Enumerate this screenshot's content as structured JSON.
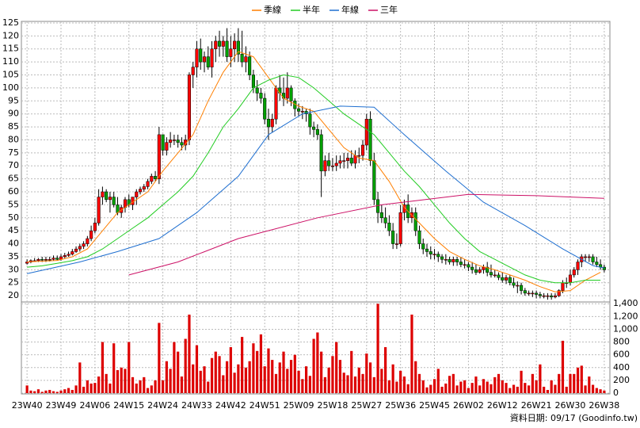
{
  "chart_data": {
    "type": "candlestick",
    "legend_position": "top",
    "grid": true,
    "xlim": [
      -1.5,
      154.5
    ],
    "xticks": [
      {
        "value": 0,
        "label": "23W40"
      },
      {
        "value": 9,
        "label": "23W49"
      },
      {
        "value": 18,
        "label": "24W06"
      },
      {
        "value": 27,
        "label": "24W15"
      },
      {
        "value": 36,
        "label": "24W24"
      },
      {
        "value": 45,
        "label": "24W33"
      },
      {
        "value": 54,
        "label": "24W42"
      },
      {
        "value": 63,
        "label": "24W51"
      },
      {
        "value": 72,
        "label": "25W09"
      },
      {
        "value": 81,
        "label": "25W18"
      },
      {
        "value": 90,
        "label": "25W27"
      },
      {
        "value": 99,
        "label": "25W36"
      },
      {
        "value": 108,
        "label": "25W45"
      },
      {
        "value": 117,
        "label": "26W02"
      },
      {
        "value": 126,
        "label": "26W12"
      },
      {
        "value": 135,
        "label": "26W21"
      },
      {
        "value": 144,
        "label": "26W30"
      },
      {
        "value": 153,
        "label": "26W38"
      }
    ],
    "ylim": [
      17.6,
      125.6
    ],
    "yticks": [
      20,
      25,
      30,
      35,
      40,
      45,
      50,
      55,
      60,
      65,
      70,
      75,
      80,
      85,
      90,
      95,
      100,
      105,
      110,
      115,
      120,
      125
    ],
    "up_color": "#ff0000",
    "down_color": "#00a000",
    "candles": {
      "open": [
        32.5,
        33,
        33.5,
        33.5,
        34,
        33.8,
        34,
        34,
        34.5,
        34,
        35,
        35.5,
        36,
        37,
        38,
        39,
        40,
        42,
        45,
        48,
        58,
        60,
        57,
        58,
        55,
        52,
        54,
        57,
        55,
        58,
        60,
        61,
        62,
        64,
        66,
        65,
        82,
        76,
        79,
        80,
        80,
        79,
        78,
        80,
        105,
        108,
        115,
        110,
        112,
        108,
        115,
        118,
        116,
        118,
        112,
        115,
        118,
        113,
        110,
        112,
        105,
        100,
        98,
        96,
        88,
        85,
        88,
        100,
        98,
        96,
        100,
        95,
        92,
        91,
        91,
        90,
        85,
        84,
        82,
        68,
        72,
        70,
        70,
        71,
        72,
        72,
        73,
        71,
        74,
        74,
        78,
        88,
        72,
        57,
        52,
        50,
        48,
        45,
        40,
        40,
        52,
        55,
        50,
        52,
        45,
        40,
        38,
        37,
        36,
        36,
        35,
        34,
        34,
        33,
        34,
        33,
        32,
        32,
        31,
        30,
        29,
        30,
        31,
        29,
        28,
        28,
        27,
        26,
        27,
        25,
        24,
        24,
        22,
        21,
        21,
        21,
        20.5,
        20,
        20,
        20,
        19.5,
        20,
        22,
        25,
        25,
        28,
        30,
        33,
        35,
        35,
        35,
        33,
        32,
        31
      ],
      "high": [
        34,
        34,
        34.5,
        34.5,
        35,
        35,
        35,
        35.5,
        35.5,
        36,
        36.5,
        37,
        38,
        39,
        40,
        41,
        43,
        47,
        50,
        61,
        62,
        61,
        60,
        60,
        58,
        55,
        58,
        59,
        58,
        61,
        62,
        63,
        65,
        67,
        68,
        85,
        82,
        81,
        83,
        82,
        82,
        81,
        82,
        106,
        110,
        118,
        119,
        114,
        116,
        118,
        120,
        122,
        120,
        123,
        120,
        121,
        123,
        122,
        116,
        114,
        107,
        103,
        100,
        98,
        92,
        90,
        101,
        105,
        104,
        106,
        101,
        96,
        94,
        93,
        92,
        92,
        87,
        86,
        84,
        74,
        75,
        73,
        74,
        74,
        75,
        75,
        76,
        76,
        77,
        80,
        90,
        91,
        75,
        60,
        55,
        54,
        51,
        48,
        44,
        55,
        57,
        59,
        54,
        54,
        47,
        42,
        40,
        39,
        38,
        37,
        36,
        36,
        35,
        35,
        35,
        35,
        34,
        33,
        33,
        32,
        31,
        32,
        33,
        32,
        30,
        29,
        29,
        28,
        28,
        27,
        25.5,
        25,
        23,
        22,
        22,
        22,
        21.5,
        21,
        21,
        21,
        21,
        22.5,
        26,
        27,
        30,
        31,
        34,
        36,
        36,
        36,
        36,
        35,
        34,
        32
      ],
      "low": [
        32,
        32.5,
        33,
        33,
        33,
        33,
        33.2,
        33.5,
        33.5,
        33.5,
        34.5,
        35,
        35.5,
        36.5,
        37,
        38,
        39,
        41,
        44,
        47,
        55,
        56,
        52,
        54,
        51,
        50,
        52,
        54,
        53,
        55,
        59,
        60,
        61,
        63,
        64,
        63,
        74,
        74,
        77,
        78,
        77,
        76,
        76,
        78,
        100,
        104,
        107,
        106,
        107,
        104,
        110,
        112,
        112,
        110,
        108,
        110,
        110,
        108,
        106,
        103,
        98,
        95,
        94,
        86,
        80,
        83,
        86,
        95,
        93,
        94,
        93,
        89,
        89,
        88,
        87,
        82,
        81,
        80,
        58,
        66,
        68,
        68,
        68,
        69,
        69,
        69,
        70,
        69,
        71,
        72,
        76,
        70,
        55,
        48,
        48,
        46,
        43,
        38,
        38,
        39,
        49,
        48,
        48,
        43,
        38,
        36,
        35,
        34,
        34,
        33,
        32.5,
        32,
        32,
        31.5,
        31.5,
        31,
        30.5,
        29.5,
        28.5,
        28,
        28.5,
        28.5,
        27.5,
        27,
        27,
        26,
        25,
        24.5,
        24,
        23,
        21,
        20.5,
        20,
        20,
        19.5,
        19,
        19,
        19,
        18.5,
        18.5,
        19,
        19.5,
        21,
        23,
        24,
        27,
        28,
        31,
        33,
        33,
        32,
        31,
        30,
        29
      ],
      "close": [
        33,
        33.5,
        33.5,
        34,
        33.8,
        34,
        34,
        34.5,
        34,
        35,
        35.5,
        36,
        37,
        38,
        39,
        40,
        42,
        45,
        48,
        58,
        60,
        57,
        58,
        55,
        52,
        54,
        57,
        55,
        58,
        60,
        61,
        62,
        64,
        66,
        65,
        82,
        76,
        79,
        80,
        80,
        79,
        78,
        80,
        105,
        108,
        115,
        110,
        112,
        108,
        115,
        118,
        116,
        118,
        112,
        115,
        118,
        113,
        110,
        112,
        105,
        100,
        98,
        96,
        88,
        85,
        88,
        100,
        98,
        96,
        100,
        95,
        92,
        91,
        91,
        90,
        85,
        84,
        82,
        68,
        72,
        70,
        70,
        71,
        72,
        72,
        73,
        71,
        74,
        74,
        78,
        88,
        72,
        57,
        52,
        50,
        48,
        45,
        40,
        40,
        52,
        55,
        50,
        52,
        45,
        40,
        38,
        37,
        36,
        36,
        35,
        34,
        34,
        33,
        34,
        33,
        32,
        32,
        31,
        30,
        29,
        30,
        31,
        29,
        28,
        28,
        27,
        26,
        27,
        25,
        24,
        24,
        22,
        21,
        21,
        21,
        20.5,
        20,
        20,
        20,
        19.5,
        20,
        22,
        25,
        25,
        28,
        30,
        33,
        35,
        35,
        35,
        33,
        32,
        31,
        30
      ]
    },
    "series": [
      {
        "name": "季線",
        "color": "#ff7f00",
        "x": [
          0,
          4,
          8,
          12,
          16,
          20,
          24,
          28,
          32,
          36,
          40,
          44,
          48,
          52,
          56,
          60,
          64,
          68,
          72,
          76,
          80,
          84,
          88,
          92,
          96,
          100,
          104,
          108,
          112,
          116,
          120,
          124,
          128,
          132,
          136,
          140,
          144,
          148,
          152
        ],
        "values": [
          33,
          33.3,
          33.6,
          35,
          38,
          45,
          52,
          56,
          60,
          68,
          75,
          82,
          95,
          106,
          114,
          112,
          104,
          96,
          93,
          91,
          84,
          77,
          73,
          72,
          64,
          54,
          48,
          42,
          37,
          34,
          31.5,
          30,
          28,
          26,
          23.5,
          21.5,
          22,
          26,
          29
        ]
      },
      {
        "name": "半年",
        "color": "#22cc22",
        "x": [
          0,
          4,
          8,
          12,
          16,
          20,
          24,
          28,
          32,
          36,
          40,
          44,
          48,
          52,
          56,
          60,
          64,
          68,
          72,
          76,
          80,
          84,
          88,
          92,
          96,
          100,
          104,
          108,
          112,
          116,
          120,
          124,
          128,
          132,
          136,
          140,
          144,
          148,
          152
        ],
        "values": [
          31,
          31.5,
          32.5,
          33.5,
          35,
          38,
          42,
          46,
          50,
          55,
          60,
          66,
          75,
          85,
          92,
          100,
          103,
          105,
          104,
          100,
          95,
          90,
          86,
          82,
          75,
          68,
          62,
          55,
          48,
          42,
          37,
          34,
          31,
          28,
          26,
          25,
          25,
          26,
          26
        ]
      },
      {
        "name": "年線",
        "color": "#1f6fd0",
        "x": [
          0,
          14,
          24,
          35,
          45,
          56,
          64,
          73,
          83,
          92,
          100,
          111,
          121,
          132,
          142,
          150,
          153
        ],
        "values": [
          28.5,
          33,
          37,
          42,
          52,
          66,
          82,
          90,
          93,
          92.6,
          82,
          68,
          56,
          47,
          38,
          31.6,
          30.7
        ]
      },
      {
        "name": "三年",
        "color": "#cc1166",
        "x": [
          27,
          40,
          56,
          77,
          94,
          117,
          135,
          153
        ],
        "values": [
          28,
          33,
          42,
          50,
          55,
          59,
          58.5,
          57.5
        ]
      }
    ],
    "volume": {
      "color": "#dd0000",
      "ylim": [
        0,
        1440
      ],
      "yticks": [
        0,
        200,
        400,
        600,
        800,
        {
          "value": 1000,
          "label": "1,000"
        },
        {
          "value": 1200,
          "label": "1,200"
        },
        {
          "value": 1400,
          "label": "1,400"
        }
      ],
      "values": [
        120,
        40,
        30,
        60,
        20,
        40,
        50,
        30,
        20,
        40,
        60,
        80,
        50,
        120,
        480,
        100,
        200,
        150,
        160,
        260,
        800,
        300,
        150,
        780,
        360,
        400,
        380,
        800,
        250,
        150,
        200,
        250,
        80,
        120,
        200,
        1100,
        200,
        500,
        380,
        800,
        650,
        260,
        850,
        1230,
        450,
        750,
        350,
        420,
        180,
        550,
        650,
        580,
        280,
        500,
        720,
        320,
        450,
        880,
        400,
        500,
        780,
        660,
        920,
        420,
        700,
        520,
        300,
        480,
        650,
        380,
        520,
        600,
        350,
        220,
        420,
        270,
        850,
        950,
        650,
        250,
        400,
        580,
        800,
        520,
        320,
        280,
        660,
        260,
        400,
        300,
        620,
        480,
        250,
        1400,
        380,
        720,
        200,
        450,
        180,
        350,
        260,
        140,
        1230,
        500,
        300,
        200,
        90,
        130,
        220,
        380,
        100,
        150,
        270,
        300,
        120,
        180,
        200,
        80,
        160,
        260,
        120,
        220,
        180,
        140,
        250,
        300,
        200,
        160,
        80,
        130,
        100,
        350,
        160,
        120,
        300,
        200,
        450,
        100,
        50,
        200,
        130,
        300,
        820,
        100,
        300,
        300,
        400,
        430,
        120,
        260,
        130,
        80,
        60,
        40
      ]
    },
    "footnote": "資料日期: 09/17  (Goodinfo.tw)"
  }
}
